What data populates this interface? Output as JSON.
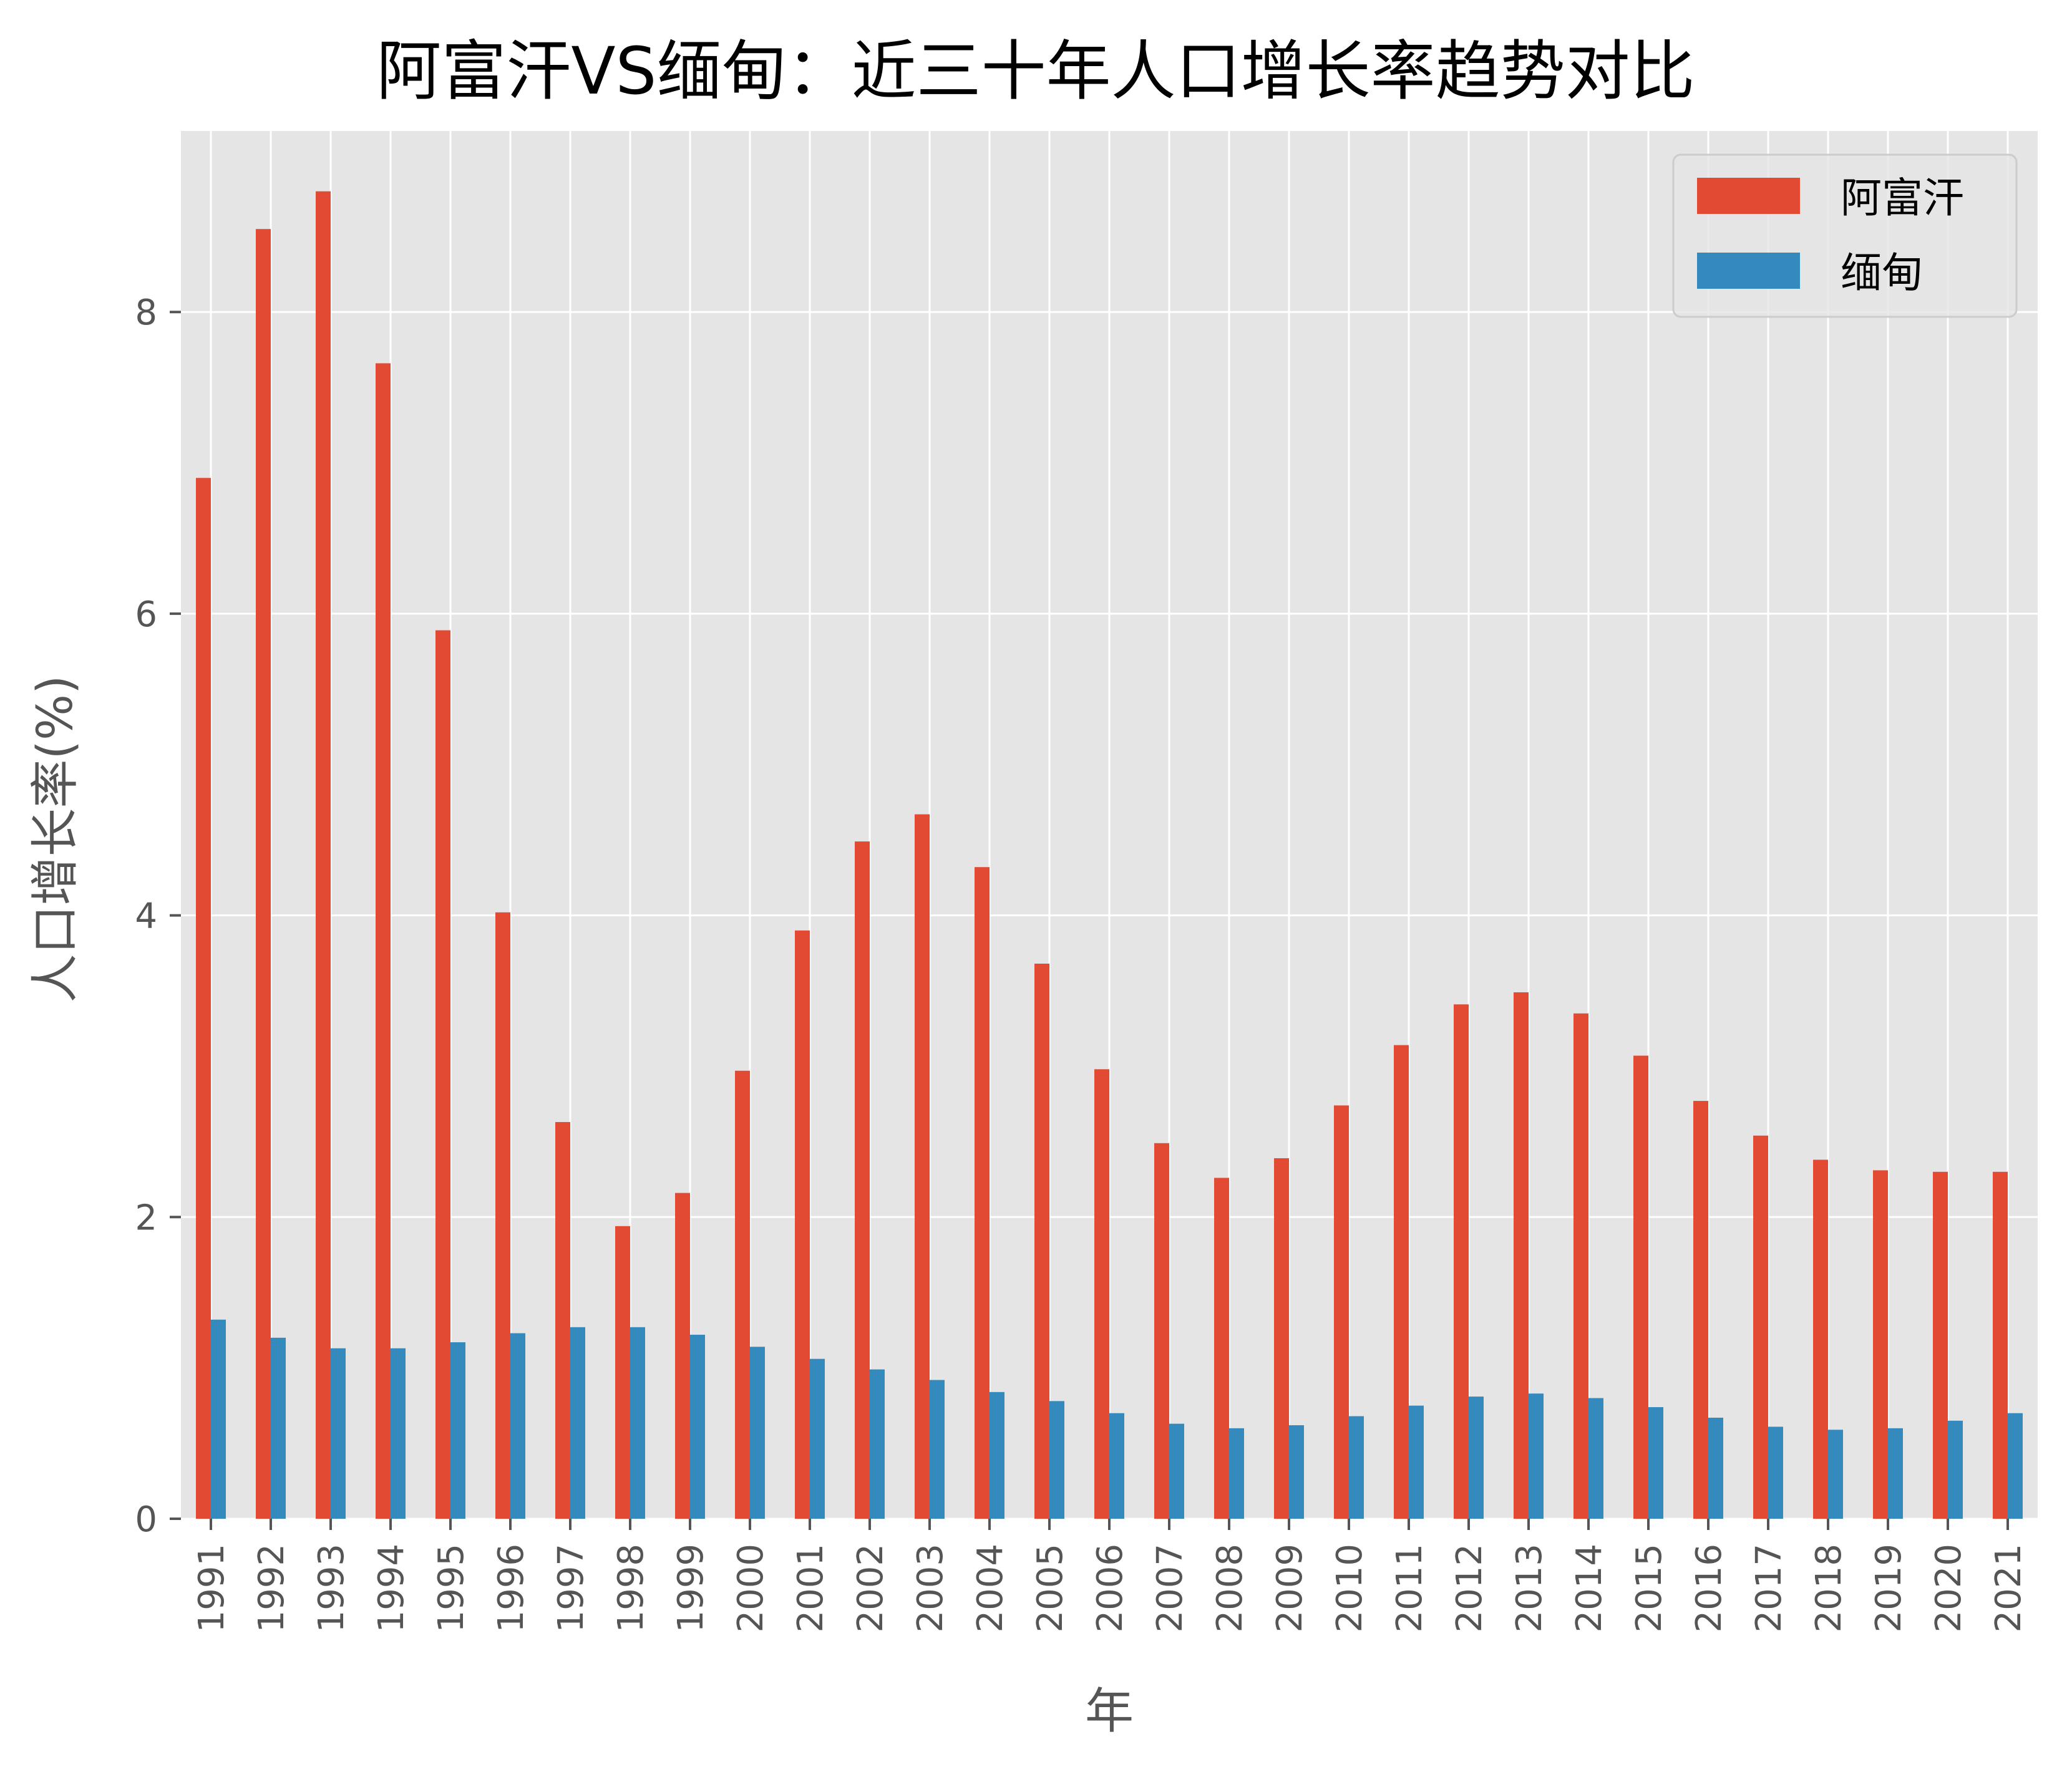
{
  "colors": {
    "afghanistan": "#E24A33",
    "myanmar": "#348ABD",
    "plot_background": "#E5E5E5",
    "grid": "#FFFFFF",
    "tick_text": "#555555"
  },
  "chart_data": {
    "type": "bar",
    "title": "阿富汗VS缅甸：近三十年人口增长率趋势对比",
    "xlabel": "年",
    "ylabel": "人口增长率(%)",
    "categories": [
      "1991",
      "1992",
      "1993",
      "1994",
      "1995",
      "1996",
      "1997",
      "1998",
      "1999",
      "2000",
      "2001",
      "2002",
      "2003",
      "2004",
      "2005",
      "2006",
      "2007",
      "2008",
      "2009",
      "2010",
      "2011",
      "2012",
      "2013",
      "2014",
      "2015",
      "2016",
      "2017",
      "2018",
      "2019",
      "2020",
      "2021"
    ],
    "series": [
      {
        "name": "阿富汗",
        "color": "#E24A33",
        "values": [
          6.9,
          8.55,
          8.8,
          7.66,
          5.89,
          4.02,
          2.63,
          1.94,
          2.16,
          2.97,
          3.9,
          4.49,
          4.67,
          4.32,
          3.68,
          2.98,
          2.49,
          2.26,
          2.39,
          2.74,
          3.14,
          3.41,
          3.49,
          3.35,
          3.07,
          2.77,
          2.54,
          2.38,
          2.31,
          2.3,
          2.3
        ]
      },
      {
        "name": "缅甸",
        "color": "#348ABD",
        "values": [
          1.32,
          1.2,
          1.13,
          1.13,
          1.17,
          1.23,
          1.27,
          1.27,
          1.22,
          1.14,
          1.06,
          0.99,
          0.92,
          0.84,
          0.78,
          0.7,
          0.63,
          0.6,
          0.62,
          0.68,
          0.75,
          0.81,
          0.83,
          0.8,
          0.74,
          0.67,
          0.61,
          0.59,
          0.6,
          0.65,
          0.7
        ]
      }
    ],
    "ylim": [
      0,
      9.2
    ],
    "yticks": [
      "0",
      "2",
      "4",
      "6",
      "8"
    ],
    "grid": true,
    "legend_position": "top-right"
  }
}
